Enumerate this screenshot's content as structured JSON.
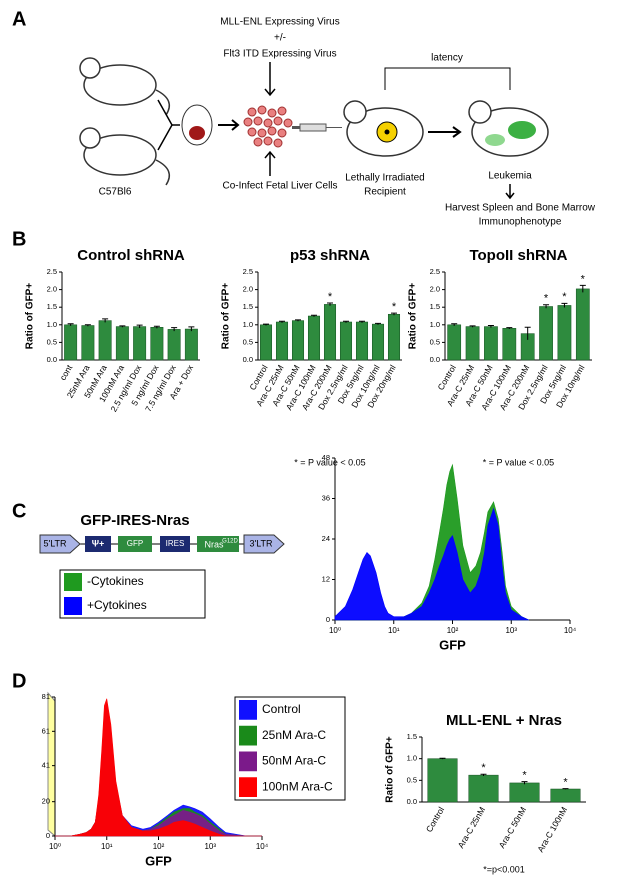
{
  "panel_labels": [
    "A",
    "B",
    "C",
    "D"
  ],
  "diagram": {
    "strain": "C57Bl6",
    "virus1": "MLL-ENL Expressing Virus",
    "plusminus": "+/-",
    "virus2": "Flt3 ITD Expressing Virus",
    "coinfect": "Co-Infect Fetal Liver Cells",
    "recipient1": "Lethally Irradiated",
    "recipient2": "Recipient",
    "latency": "latency",
    "leukemia": "Leukemia",
    "harvest1": "Harvest Spleen and Bone Marrow",
    "harvest2": "Immunophenotype"
  },
  "construct": {
    "title": "GFP-IRES-Nras",
    "ltr5": "5'LTR",
    "psi": "Ψ+",
    "gfp": "GFP",
    "ires": "IRES",
    "nras": "Nras",
    "nras_sup": "G12D",
    "ltr3": "3'LTR"
  },
  "chart_data": [
    {
      "type": "bar",
      "title": "Control shRNA",
      "ylabel": "Ratio of GFP+",
      "color": "#2e8b3e",
      "categories": [
        "cont",
        "25nM Ara",
        "50nM Ara",
        "100nM Ara",
        "2.5 ng/ml Dox",
        "5 ng/ml Dox",
        "7.5 ng/ml Dox",
        "Ara + Dox"
      ],
      "values": [
        1.0,
        0.98,
        1.12,
        0.95,
        0.95,
        0.93,
        0.87,
        0.88
      ],
      "errors": [
        0.03,
        0.02,
        0.05,
        0.02,
        0.04,
        0.03,
        0.05,
        0.06
      ],
      "ylim": [
        0,
        2.5
      ],
      "yticks": [
        {
          "value": 0,
          "label": "0.0"
        },
        0.5,
        {
          "value": 1,
          "label": "1.0"
        },
        1.5,
        {
          "value": 2,
          "label": "2.0"
        },
        2.5
      ]
    },
    {
      "type": "bar",
      "title": "p53 shRNA",
      "ylabel": "Ratio of GFP+",
      "color": "#2e8b3e",
      "categories": [
        "Control",
        "Ara-C 25nM",
        "Ara-C 50nM",
        "Ara-C 100nM",
        "Ara-C 200nM",
        "Dox 2.5ng/ml",
        "Dox 5ng/ml",
        "Dox 10ng/ml",
        "Dox 20ng/ml"
      ],
      "values": [
        1.0,
        1.08,
        1.12,
        1.25,
        1.58,
        1.08,
        1.08,
        1.02,
        1.3
      ],
      "errors": [
        0.02,
        0.02,
        0.02,
        0.02,
        0.04,
        0.02,
        0.02,
        0.02,
        0.03
      ],
      "significance": [
        null,
        null,
        null,
        null,
        "*",
        null,
        null,
        null,
        "*"
      ],
      "footnote": "* = P value < 0.05",
      "ylim": [
        0,
        2.5
      ],
      "yticks": [
        {
          "value": 0,
          "label": "0.0"
        },
        0.5,
        {
          "value": 1,
          "label": "1.0"
        },
        1.5,
        {
          "value": 2,
          "label": "2.0"
        },
        2.5
      ]
    },
    {
      "type": "bar",
      "title": "TopoII shRNA",
      "ylabel": "Ratio of GFP+",
      "color": "#2e8b3e",
      "categories": [
        "Control",
        "Ara-C 25nM",
        "Ara-C 50nM",
        "Ara-C 100nM",
        "Ara-C 200nM",
        "Dox 2.5ng/ml",
        "Dox 5ng/ml",
        "Dox 10ng/ml"
      ],
      "values": [
        1.0,
        0.95,
        0.95,
        0.9,
        0.75,
        1.52,
        1.55,
        2.02
      ],
      "errors": [
        0.03,
        0.02,
        0.03,
        0.02,
        0.18,
        0.05,
        0.06,
        0.1
      ],
      "significance": [
        null,
        null,
        null,
        null,
        null,
        "*",
        "*",
        "*"
      ],
      "footnote": "* = P value < 0.05",
      "ylim": [
        0,
        2.5
      ],
      "yticks": [
        {
          "value": 0,
          "label": "0.0"
        },
        0.5,
        {
          "value": 1,
          "label": "1.0"
        },
        1.5,
        {
          "value": 2,
          "label": "2.0"
        },
        2.5
      ]
    },
    {
      "type": "area",
      "xlabel": "GFP",
      "xlog": true,
      "x": [
        1,
        1.5,
        2,
        2.5,
        3,
        3.5,
        4,
        5,
        6,
        7,
        8,
        10,
        15,
        20,
        30,
        40,
        50,
        60,
        70,
        80,
        90,
        100,
        120,
        150,
        200,
        250,
        300,
        350,
        400,
        500,
        600,
        700,
        800,
        1000,
        1500,
        2000
      ],
      "series": [
        {
          "name": "-Cytokines",
          "color": "#1f9a1f",
          "values": [
            0,
            0,
            0,
            0,
            0,
            0,
            0,
            0,
            0,
            0,
            0,
            0,
            1,
            2,
            5,
            10,
            18,
            26,
            33,
            40,
            44,
            46,
            36,
            22,
            14,
            16,
            20,
            26,
            32,
            35,
            30,
            20,
            10,
            4,
            1,
            0
          ]
        },
        {
          "name": "+Cytokines",
          "color": "#0000ff",
          "values": [
            1,
            4,
            9,
            14,
            18,
            20,
            19,
            14,
            8,
            4,
            2,
            1,
            1,
            2,
            4,
            8,
            12,
            16,
            19,
            22,
            24,
            25,
            20,
            12,
            8,
            10,
            14,
            20,
            28,
            33,
            28,
            16,
            8,
            3,
            1,
            0
          ]
        }
      ],
      "xlim": [
        1,
        10000
      ],
      "xticks": [
        {
          "value": 1,
          "label": "10⁰"
        },
        {
          "value": 10,
          "label": "10¹"
        },
        {
          "value": 100,
          "label": "10²"
        },
        {
          "value": 1000,
          "label": "10³"
        },
        {
          "value": 10000,
          "label": "10⁴"
        }
      ],
      "ylim": [
        0,
        48
      ],
      "yticks": [
        0,
        12,
        24,
        36,
        48
      ]
    },
    {
      "type": "area",
      "xlabel": "GFP",
      "xlog": true,
      "x": [
        1,
        2,
        3,
        4,
        5,
        6,
        7,
        8,
        9,
        10,
        12,
        15,
        20,
        30,
        50,
        70,
        100,
        150,
        200,
        300,
        400,
        500,
        700,
        1000,
        1500,
        2000,
        5000,
        10000
      ],
      "series": [
        {
          "name": "Control",
          "color": "#1010ff",
          "values": [
            0,
            0,
            1,
            2,
            4,
            8,
            20,
            45,
            70,
            78,
            60,
            30,
            12,
            6,
            4,
            5,
            8,
            12,
            15,
            18,
            17,
            16,
            14,
            10,
            5,
            2,
            0,
            0
          ]
        },
        {
          "name": "25nM Ara-C",
          "color": "#1a8a1a",
          "values": [
            0,
            0,
            1,
            2,
            4,
            8,
            20,
            44,
            68,
            76,
            58,
            28,
            10,
            5,
            3,
            4,
            7,
            11,
            14,
            16,
            16,
            14,
            12,
            8,
            4,
            1,
            0,
            0
          ]
        },
        {
          "name": "50nM Ara-C",
          "color": "#7b1a8a",
          "values": [
            0,
            0,
            1,
            2,
            4,
            8,
            22,
            46,
            72,
            78,
            62,
            30,
            11,
            5,
            3,
            4,
            6,
            10,
            12,
            15,
            14,
            13,
            11,
            7,
            3,
            1,
            0,
            0
          ]
        },
        {
          "name": "100nM Ara-C",
          "color": "#ff0000",
          "values": [
            0,
            0,
            1,
            2,
            4,
            8,
            24,
            50,
            76,
            80,
            65,
            32,
            12,
            5,
            3,
            3,
            4,
            6,
            8,
            9,
            8,
            7,
            5,
            3,
            1,
            0,
            0,
            0
          ]
        }
      ],
      "xlim": [
        1,
        10000
      ],
      "xticks": [
        {
          "value": 1,
          "label": "10⁰"
        },
        {
          "value": 10,
          "label": "10¹"
        },
        {
          "value": 100,
          "label": "10²"
        },
        {
          "value": 1000,
          "label": "10³"
        },
        {
          "value": 10000,
          "label": "10⁴"
        }
      ],
      "ylim": [
        0,
        81
      ],
      "yticks": [
        0,
        20,
        41,
        61,
        81
      ]
    },
    {
      "type": "bar",
      "title": "MLL-ENL + Nras",
      "ylabel": "Ratio of GFP+",
      "color": "#2e8b3e",
      "categories": [
        "Control",
        "Ara-C 25nM",
        "Ara-C 50nM",
        "Ara-C 100nM"
      ],
      "values": [
        1.0,
        0.62,
        0.44,
        0.3
      ],
      "errors": [
        0.01,
        0.02,
        0.03,
        0.01
      ],
      "significance": [
        null,
        "*",
        "*",
        "*"
      ],
      "footnote": "*=p<0.001",
      "ylim": [
        0,
        1.5
      ],
      "yticks": [
        {
          "value": 0,
          "label": "0.0"
        },
        0.5,
        {
          "value": 1,
          "label": "1.0"
        },
        1.5
      ]
    }
  ]
}
